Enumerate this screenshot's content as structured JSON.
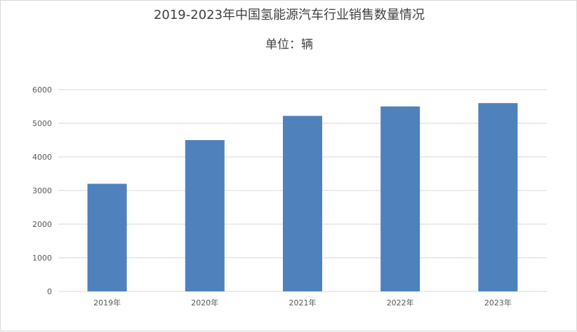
{
  "chart_data": {
    "type": "bar",
    "title": "2019-2023年中国氢能源汽车行业销售数量情况",
    "subtitle": "单位：辆",
    "categories": [
      "2019年",
      "2020年",
      "2021年",
      "2022年",
      "2023年"
    ],
    "values": [
      3200,
      4500,
      5220,
      5500,
      5600
    ],
    "ylim": [
      0,
      6000
    ],
    "yticks": [
      0,
      1000,
      2000,
      3000,
      4000,
      5000,
      6000
    ],
    "xlabel": "",
    "ylabel": "",
    "grid": true,
    "legend": "none",
    "bar_color": "#4f81bd",
    "grid_color": "#d9d9d9"
  }
}
